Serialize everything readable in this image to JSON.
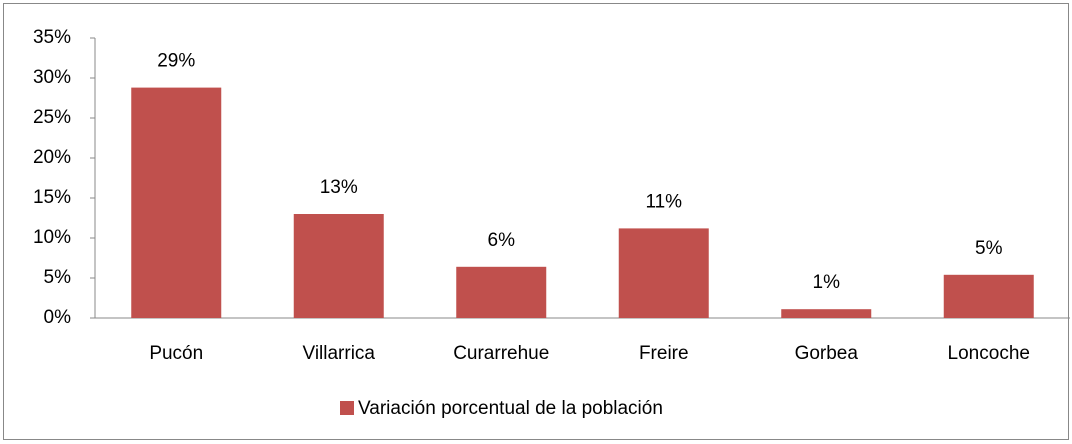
{
  "chart_data": {
    "type": "bar",
    "categories": [
      "Pucón",
      "Villarrica",
      "Curarrehue",
      "Freire",
      "Gorbea",
      "Loncoche"
    ],
    "series": [
      {
        "name": "Variación porcentual de la población",
        "color": "#c0504d",
        "values": [
          28.8,
          13.0,
          6.4,
          11.2,
          1.1,
          5.4
        ],
        "value_labels": [
          "29%",
          "13%",
          "6%",
          "11%",
          "1%",
          "5%"
        ]
      }
    ],
    "ylim": [
      0,
      35
    ],
    "yticks": [
      {
        "value": 0,
        "label": "0%"
      },
      {
        "value": 5,
        "label": "5%"
      },
      {
        "value": 10,
        "label": "10%"
      },
      {
        "value": 15,
        "label": "15%"
      },
      {
        "value": 20,
        "label": "20%"
      },
      {
        "value": 25,
        "label": "25%"
      },
      {
        "value": 30,
        "label": "30%"
      },
      {
        "value": 35,
        "label": "35%"
      }
    ],
    "grid": false,
    "legend": "bottom"
  }
}
